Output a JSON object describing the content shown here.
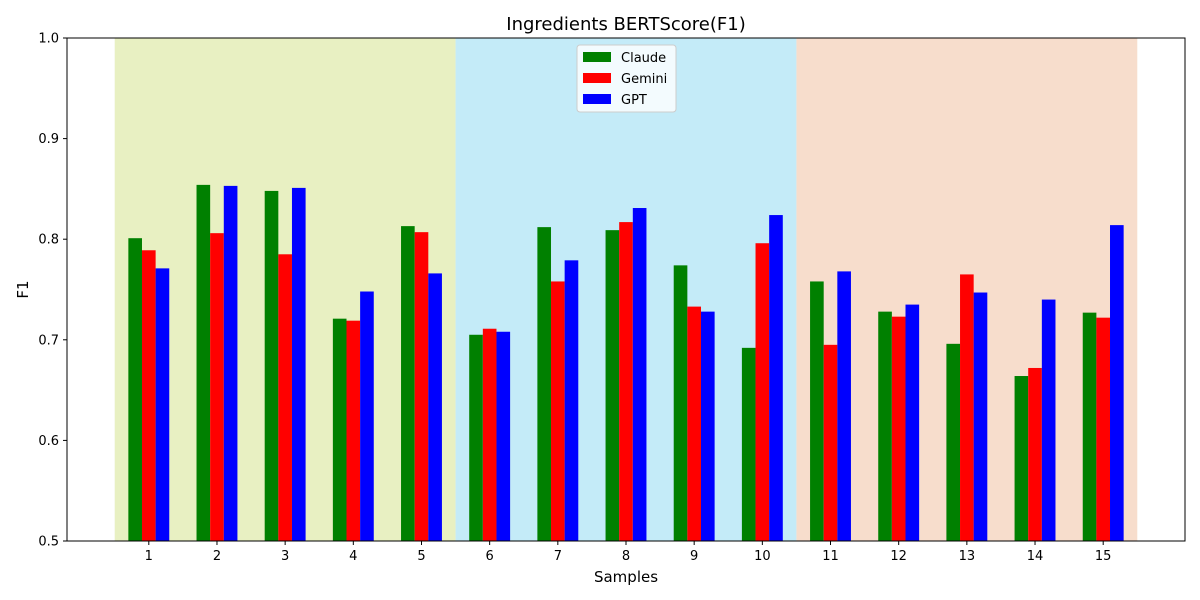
{
  "chart_data": {
    "type": "bar",
    "title": "Ingredients BERTScore(F1)",
    "xlabel": "Samples",
    "ylabel": "F1",
    "ylim": [
      0.5,
      1.0
    ],
    "yticks": [
      "0.5",
      "0.6",
      "0.7",
      "0.8",
      "0.9",
      "1.0"
    ],
    "categories": [
      "1",
      "2",
      "3",
      "4",
      "5",
      "6",
      "7",
      "8",
      "9",
      "10",
      "11",
      "12",
      "13",
      "14",
      "15"
    ],
    "legend_position": "top-center",
    "grid": false,
    "background_bands": [
      {
        "from_category": "1",
        "to_category": "5",
        "color": "#e8f0c2"
      },
      {
        "from_category": "6",
        "to_category": "10",
        "color": "#c4ebf8"
      },
      {
        "from_category": "11",
        "to_category": "15",
        "color": "#f7ddcc"
      }
    ],
    "series": [
      {
        "name": "Claude",
        "color": "#008000",
        "values": [
          0.801,
          0.854,
          0.848,
          0.721,
          0.813,
          0.705,
          0.812,
          0.809,
          0.774,
          0.692,
          0.758,
          0.728,
          0.696,
          0.664,
          0.727
        ]
      },
      {
        "name": "Gemini",
        "color": "#ff0000",
        "values": [
          0.789,
          0.806,
          0.785,
          0.719,
          0.807,
          0.711,
          0.758,
          0.817,
          0.733,
          0.796,
          0.695,
          0.723,
          0.765,
          0.672,
          0.722
        ]
      },
      {
        "name": "GPT",
        "color": "#0000ff",
        "values": [
          0.771,
          0.853,
          0.851,
          0.748,
          0.766,
          0.708,
          0.779,
          0.831,
          0.728,
          0.824,
          0.768,
          0.735,
          0.747,
          0.74,
          0.814
        ]
      }
    ]
  }
}
